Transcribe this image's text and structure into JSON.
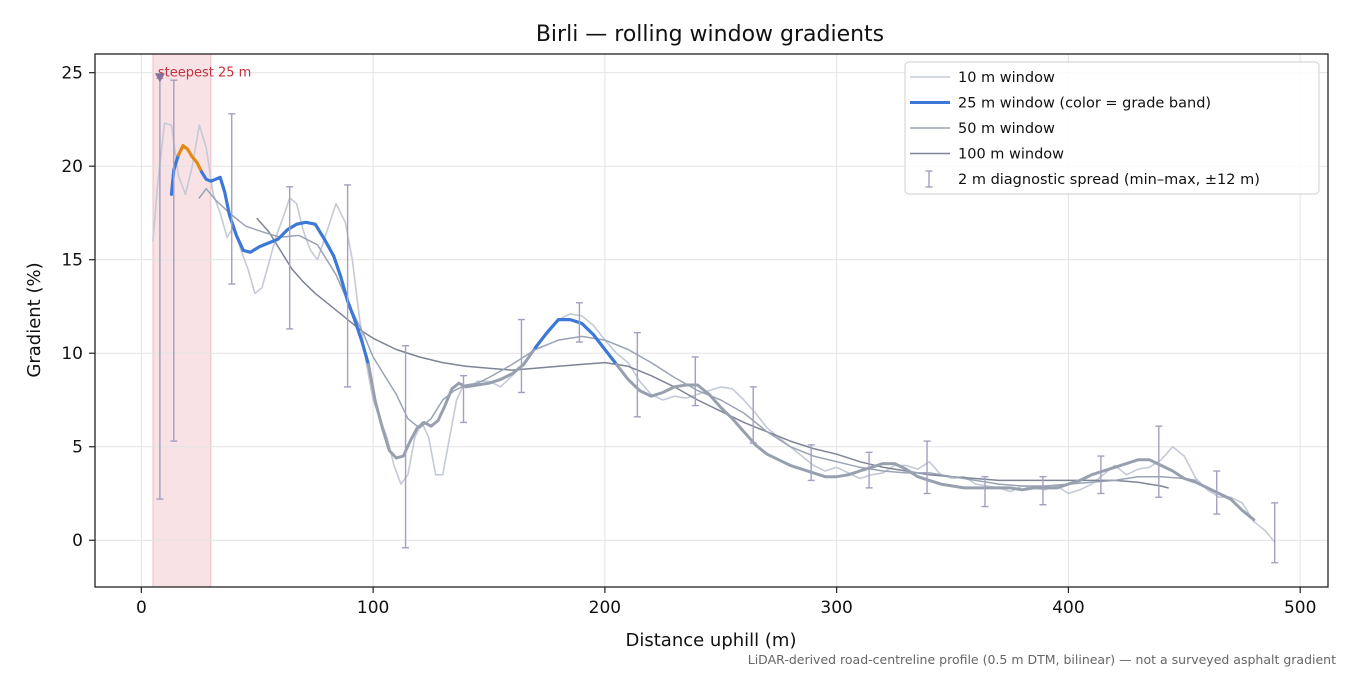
{
  "chart_data": {
    "type": "line",
    "title": "Birli — rolling window gradients",
    "xlabel": "Distance uphill (m)",
    "ylabel": "Gradient (%)",
    "xlim": [
      -20,
      512
    ],
    "ylim": [
      -2.5,
      26
    ],
    "xticks": [
      0,
      100,
      200,
      300,
      400,
      500
    ],
    "yticks": [
      0,
      5,
      10,
      15,
      20,
      25
    ],
    "grid": true,
    "legend_position": "top-right",
    "footnote": "LiDAR-derived road-centreline profile (0.5 m DTM, bilinear) — not a surveyed asphalt gradient",
    "annotation": {
      "text": "steepest 25 m",
      "x": 8,
      "y": 24.7
    },
    "highlight_band": {
      "x_start": 5,
      "x_end": 30,
      "color": "#d9606f"
    },
    "colors": {
      "w10": "#c4cad6",
      "w50": "#9aa3b4",
      "w100": "#7d8494",
      "band_steep": "#e08a14",
      "band_moderate": "#3b78d8",
      "band_grey": "#98a0b0",
      "errorbar": "#a59ec0",
      "marker": "#8a6f99",
      "annotation": "#c2323c"
    },
    "legend": [
      {
        "key": "w10",
        "label": "10 m window"
      },
      {
        "key": "w25",
        "label": "25 m window (color = grade band)"
      },
      {
        "key": "w50",
        "label": "50 m window"
      },
      {
        "key": "w100",
        "label": "100 m window"
      },
      {
        "key": "spread",
        "label": "2 m diagnostic spread (min–max, ±12 m)"
      }
    ],
    "series": [
      {
        "name": "10 m window",
        "key": "w10",
        "x": [
          5,
          7,
          10,
          13,
          16,
          19,
          22,
          25,
          28,
          31,
          34,
          37,
          40,
          43,
          46,
          49,
          52,
          55,
          58,
          61,
          64,
          67,
          70,
          73,
          76,
          80,
          84,
          88,
          91,
          94,
          97,
          100,
          103,
          106,
          109,
          112,
          115,
          118,
          121,
          124,
          127,
          130,
          133,
          136,
          139,
          142,
          145,
          150,
          155,
          160,
          165,
          170,
          175,
          180,
          185,
          190,
          195,
          200,
          205,
          210,
          215,
          220,
          225,
          230,
          235,
          240,
          245,
          250,
          255,
          260,
          265,
          270,
          275,
          280,
          285,
          290,
          295,
          300,
          305,
          310,
          315,
          320,
          325,
          330,
          335,
          340,
          345,
          350,
          355,
          360,
          365,
          370,
          375,
          380,
          385,
          390,
          395,
          400,
          405,
          410,
          415,
          420,
          425,
          430,
          435,
          440,
          445,
          450,
          455,
          460,
          465,
          470,
          475,
          480,
          485,
          489
        ],
        "y": [
          16,
          19,
          22.3,
          22.2,
          19.5,
          18.5,
          20,
          22.2,
          21,
          18.5,
          17.5,
          16.2,
          16.8,
          15.5,
          14.5,
          13.2,
          13.5,
          14.8,
          16.2,
          17.2,
          18.3,
          18,
          16.5,
          15.5,
          15,
          16.5,
          18,
          17,
          15,
          12,
          9.5,
          7.5,
          6.5,
          5.5,
          4,
          3,
          3.5,
          5.5,
          6.3,
          5.5,
          3.5,
          3.5,
          5.5,
          7.5,
          8.3,
          8.2,
          8.5,
          8.5,
          8.2,
          8.8,
          9.5,
          10.3,
          11,
          11.8,
          12.1,
          12,
          11.5,
          10.7,
          10,
          9.5,
          8.5,
          7.8,
          7.5,
          7.7,
          7.6,
          7.8,
          8,
          8.2,
          8.1,
          7.5,
          6.8,
          6,
          5.5,
          5,
          4.5,
          4,
          3.7,
          3.9,
          3.6,
          3.3,
          3.5,
          3.6,
          4,
          4,
          3.8,
          4.2,
          3.5,
          3.3,
          3.4,
          3,
          2.9,
          2.8,
          2.6,
          2.9,
          2.8,
          2.7,
          2.9,
          2.5,
          2.7,
          3,
          3.5,
          4,
          3.5,
          3.8,
          3.9,
          4.3,
          5,
          4.5,
          3.3,
          2.7,
          2.3,
          2.3,
          2,
          1,
          0.5,
          -0.1
        ]
      },
      {
        "name": "25 m window (color = grade band)",
        "key": "w25",
        "x": [
          13,
          14,
          16,
          18,
          20,
          22,
          24,
          26,
          28,
          30,
          32,
          34,
          36,
          38,
          41,
          44,
          47,
          51,
          55,
          59,
          63,
          67,
          71,
          75,
          79,
          83,
          86,
          89,
          92,
          95,
          98,
          101,
          104,
          107,
          110,
          113,
          116,
          119,
          122,
          125,
          128,
          131,
          134,
          137,
          140,
          145,
          150,
          155,
          160,
          165,
          170,
          175,
          180,
          185,
          190,
          195,
          200,
          205,
          210,
          215,
          220,
          225,
          230,
          235,
          240,
          245,
          250,
          255,
          260,
          265,
          270,
          275,
          280,
          285,
          290,
          295,
          300,
          305,
          310,
          315,
          320,
          325,
          330,
          335,
          340,
          345,
          350,
          355,
          360,
          365,
          370,
          375,
          380,
          385,
          390,
          395,
          400,
          405,
          410,
          415,
          420,
          425,
          430,
          435,
          440,
          445,
          450,
          455,
          460,
          465,
          470,
          475,
          480
        ],
        "y": [
          18.5,
          19.8,
          20.6,
          21.1,
          20.9,
          20.5,
          20.2,
          19.7,
          19.3,
          19.2,
          19.3,
          19.4,
          18.6,
          17.4,
          16.3,
          15.5,
          15.4,
          15.7,
          15.9,
          16.1,
          16.6,
          16.9,
          17,
          16.9,
          16.1,
          15.2,
          14.1,
          12.8,
          11.8,
          10.7,
          9.4,
          7.4,
          6,
          4.8,
          4.4,
          4.5,
          5.3,
          6,
          6.3,
          6.1,
          6.4,
          7.2,
          8.1,
          8.4,
          8.2,
          8.3,
          8.4,
          8.6,
          8.9,
          9.4,
          10.3,
          11.1,
          11.8,
          11.8,
          11.6,
          11,
          10.2,
          9.4,
          8.6,
          8,
          7.7,
          7.9,
          8.2,
          8.3,
          8.3,
          7.8,
          7.1,
          6.5,
          5.8,
          5.1,
          4.6,
          4.3,
          4,
          3.8,
          3.6,
          3.4,
          3.4,
          3.5,
          3.7,
          3.9,
          4.1,
          4.1,
          3.8,
          3.4,
          3.2,
          3,
          2.9,
          2.8,
          2.8,
          2.8,
          2.8,
          2.8,
          2.7,
          2.8,
          2.8,
          2.8,
          3,
          3.2,
          3.5,
          3.7,
          3.9,
          4.1,
          4.3,
          4.3,
          4,
          3.7,
          3.3,
          3.1,
          2.8,
          2.5,
          2.2,
          1.6,
          1.1
        ]
      },
      {
        "name": "50 m window",
        "key": "w50",
        "x": [
          25,
          28,
          32,
          38,
          45,
          52,
          60,
          68,
          76,
          84,
          90,
          96,
          100,
          105,
          110,
          115,
          120,
          125,
          130,
          135,
          140,
          145,
          150,
          160,
          170,
          180,
          190,
          200,
          210,
          220,
          230,
          240,
          250,
          260,
          270,
          280,
          290,
          300,
          310,
          320,
          330,
          340,
          350,
          360,
          370,
          380,
          390,
          400,
          410,
          420,
          430,
          440,
          450,
          455
        ],
        "y": [
          18.3,
          18.8,
          18.2,
          17.5,
          16.8,
          16.5,
          16.2,
          16.3,
          15.8,
          14.2,
          12.5,
          11,
          9.8,
          8.8,
          7.8,
          6.5,
          6,
          6.5,
          7.5,
          8,
          8.3,
          8.4,
          8.7,
          9.4,
          10.2,
          10.7,
          10.9,
          10.7,
          10.2,
          9.5,
          8.7,
          8,
          7.5,
          6.8,
          5.8,
          5,
          4.5,
          4.2,
          3.9,
          3.7,
          3.6,
          3.6,
          3.4,
          3.2,
          3,
          2.9,
          2.9,
          3,
          3.1,
          3.2,
          3.4,
          3.4,
          3.3,
          3.2
        ]
      },
      {
        "name": "100 m window",
        "key": "w100",
        "x": [
          50,
          55,
          60,
          65,
          70,
          75,
          80,
          85,
          90,
          95,
          100,
          105,
          110,
          120,
          130,
          140,
          150,
          160,
          170,
          180,
          190,
          200,
          210,
          220,
          230,
          240,
          250,
          260,
          270,
          280,
          290,
          300,
          310,
          320,
          330,
          340,
          350,
          360,
          370,
          380,
          390,
          400,
          410,
          420,
          430,
          440,
          443
        ],
        "y": [
          17.2,
          16.5,
          15.5,
          14.5,
          13.8,
          13.2,
          12.7,
          12.2,
          11.7,
          11.2,
          10.8,
          10.5,
          10.2,
          9.8,
          9.5,
          9.3,
          9.2,
          9.1,
          9.2,
          9.3,
          9.4,
          9.5,
          9.3,
          8.8,
          8.2,
          7.5,
          6.9,
          6.3,
          5.8,
          5.3,
          4.9,
          4.6,
          4.2,
          3.9,
          3.7,
          3.5,
          3.4,
          3.3,
          3.2,
          3.2,
          3.2,
          3.2,
          3.2,
          3.2,
          3.1,
          2.9,
          2.8
        ]
      }
    ],
    "w25_bands": [
      {
        "from_x": 13,
        "to_x": 16,
        "color": "#3b78d8"
      },
      {
        "from_x": 16,
        "to_x": 26,
        "color": "#e08a14"
      },
      {
        "from_x": 26,
        "to_x": 98,
        "color": "#3b78d8"
      },
      {
        "from_x": 98,
        "to_x": 170,
        "color": "#98a0b0"
      },
      {
        "from_x": 170,
        "to_x": 205,
        "color": "#3b78d8"
      },
      {
        "from_x": 205,
        "to_x": 480,
        "color": "#98a0b0"
      }
    ],
    "error_bars": [
      {
        "x": 8,
        "low": 2.2,
        "high": 24.7
      },
      {
        "x": 14,
        "low": 5.3,
        "high": 24.6
      },
      {
        "x": 39,
        "low": 13.7,
        "high": 22.8
      },
      {
        "x": 64,
        "low": 11.3,
        "high": 18.9
      },
      {
        "x": 89,
        "low": 8.2,
        "high": 19
      },
      {
        "x": 114,
        "low": -0.4,
        "high": 10.4
      },
      {
        "x": 139,
        "low": 6.3,
        "high": 8.8
      },
      {
        "x": 164,
        "low": 7.9,
        "high": 11.8
      },
      {
        "x": 189,
        "low": 10.6,
        "high": 12.7
      },
      {
        "x": 214,
        "low": 6.6,
        "high": 11.1
      },
      {
        "x": 239,
        "low": 7.2,
        "high": 9.8
      },
      {
        "x": 264,
        "low": 5.2,
        "high": 8.2
      },
      {
        "x": 289,
        "low": 3.2,
        "high": 5.1
      },
      {
        "x": 314,
        "low": 2.8,
        "high": 4.7
      },
      {
        "x": 339,
        "low": 2.5,
        "high": 5.3
      },
      {
        "x": 364,
        "low": 1.8,
        "high": 3.4
      },
      {
        "x": 389,
        "low": 1.9,
        "high": 3.4
      },
      {
        "x": 414,
        "low": 2.5,
        "high": 4.5
      },
      {
        "x": 439,
        "low": 2.3,
        "high": 6.1
      },
      {
        "x": 464,
        "low": 1.4,
        "high": 3.7
      },
      {
        "x": 489,
        "low": -1.2,
        "high": 2
      }
    ]
  }
}
